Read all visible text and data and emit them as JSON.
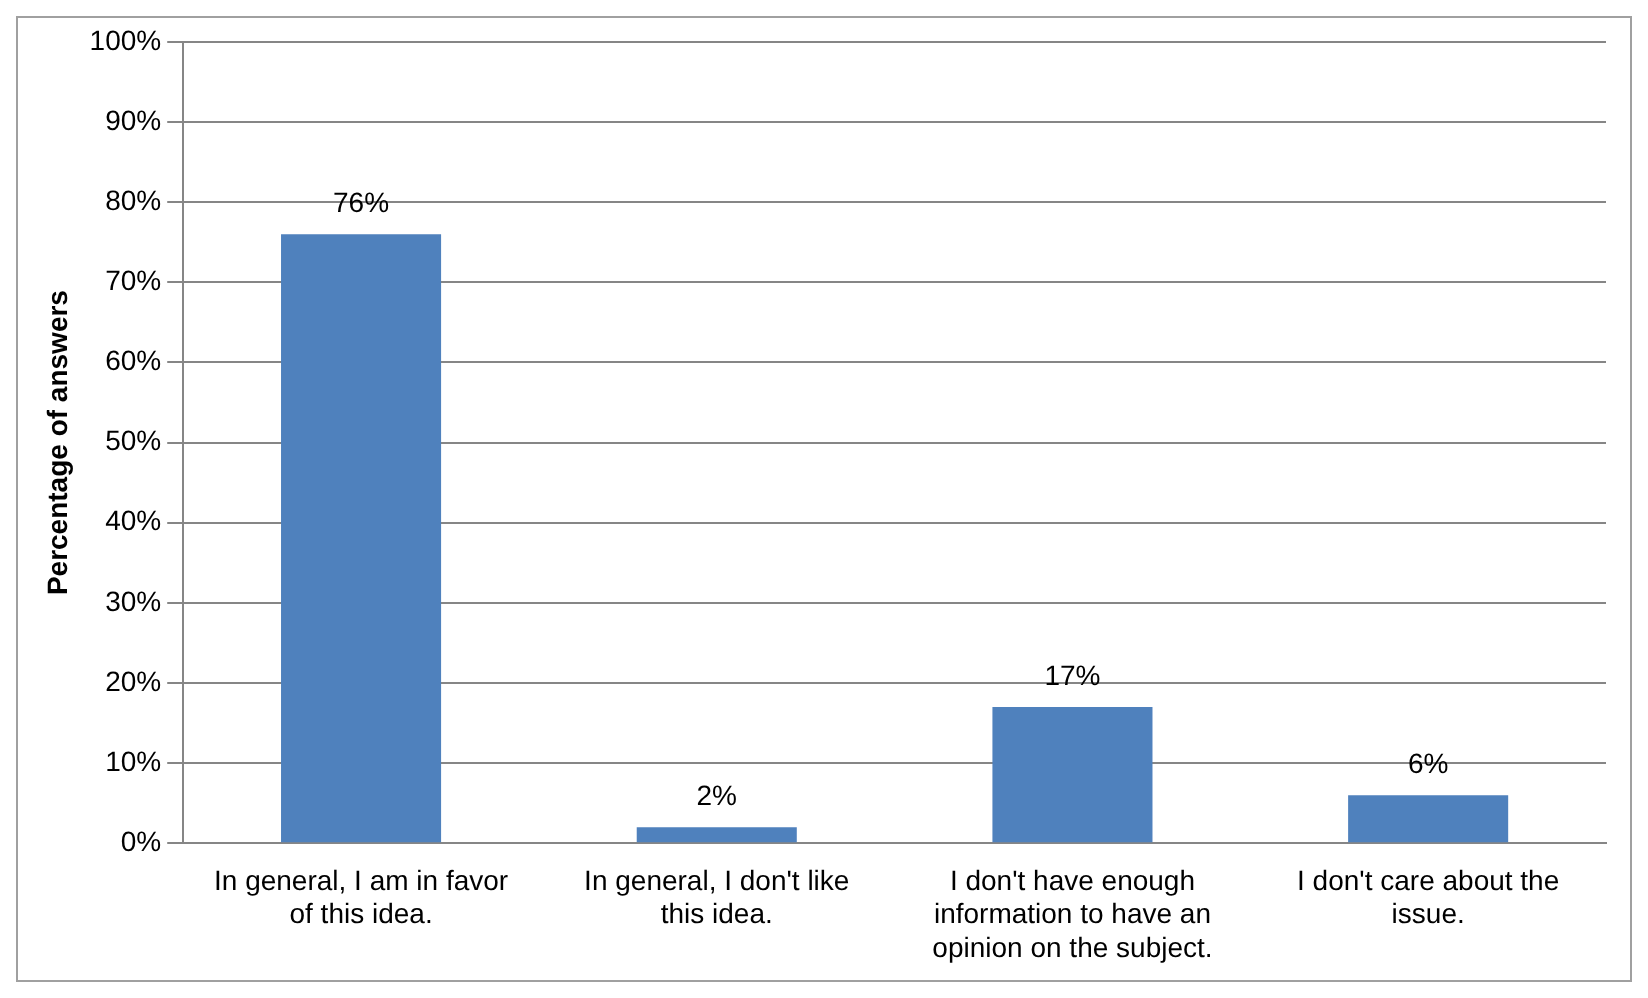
{
  "chart_data": {
    "type": "bar",
    "ylabel": "Percentage of answers",
    "categories": [
      "In general, I am in favor of this idea.",
      "In general, I don't like this idea.",
      "I don't have enough information to have an opinion on the subject.",
      "I don't care about the issue."
    ],
    "values": [
      76,
      2,
      17,
      6
    ],
    "color": "#4f81bd",
    "value_labels": [
      "76%",
      "2%",
      "17%",
      "6%"
    ],
    "ylim": [
      0,
      100
    ],
    "yticks": [
      {
        "value": 0,
        "label": "0%"
      },
      {
        "value": 10,
        "label": "10%"
      },
      {
        "value": 20,
        "label": "20%"
      },
      {
        "value": 30,
        "label": "30%"
      },
      {
        "value": 40,
        "label": "40%"
      },
      {
        "value": 50,
        "label": "50%"
      },
      {
        "value": 60,
        "label": "60%"
      },
      {
        "value": 70,
        "label": "70%"
      },
      {
        "value": 80,
        "label": "80%"
      },
      {
        "value": 90,
        "label": "90%"
      },
      {
        "value": 100,
        "label": "100%"
      }
    ],
    "grid": "y",
    "legend": false
  }
}
